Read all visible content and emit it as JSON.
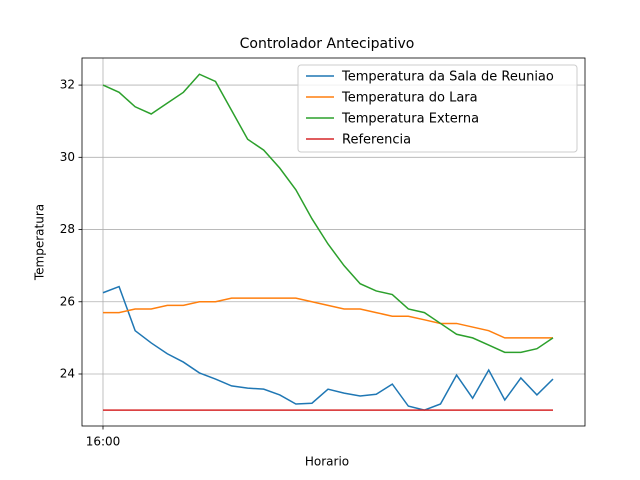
{
  "chart_data": {
    "type": "line",
    "title": "Controlador Antecipativo",
    "xlabel": "Horario",
    "ylabel": "Temperatura",
    "categories": [
      "16:00",
      null,
      null,
      null,
      null,
      null,
      null,
      null,
      null,
      null,
      null,
      null,
      null,
      null,
      null,
      null,
      null,
      null,
      null,
      null,
      null,
      null,
      null,
      null,
      null,
      null,
      null,
      null,
      null
    ],
    "series": [
      {
        "name": "Temperatura da Sala de Reuniao",
        "color": "#1f77b4",
        "values": [
          26.25,
          26.42,
          25.2,
          24.86,
          24.56,
          24.33,
          24.03,
          23.86,
          23.67,
          23.61,
          23.58,
          23.42,
          23.17,
          23.19,
          23.58,
          23.47,
          23.39,
          23.44,
          23.72,
          23.11,
          23.0,
          23.17,
          23.97,
          23.33,
          24.11,
          23.28,
          23.89,
          23.42,
          23.86
        ]
      },
      {
        "name": "Temperatura do Lara",
        "color": "#ff7f0e",
        "values": [
          25.7,
          25.7,
          25.8,
          25.8,
          25.9,
          25.9,
          26.0,
          26.0,
          26.1,
          26.1,
          26.1,
          26.1,
          26.1,
          26.0,
          25.9,
          25.8,
          25.8,
          25.7,
          25.6,
          25.6,
          25.5,
          25.4,
          25.4,
          25.3,
          25.2,
          25.0,
          25.0,
          25.0,
          25.0
        ]
      },
      {
        "name": "Temperatura Externa",
        "color": "#2ca02c",
        "values": [
          32.0,
          31.8,
          31.4,
          31.2,
          31.5,
          31.8,
          32.3,
          32.1,
          31.3,
          30.5,
          30.2,
          29.7,
          29.1,
          28.3,
          27.6,
          27.0,
          26.5,
          26.3,
          26.2,
          25.8,
          25.7,
          25.4,
          25.1,
          25.0,
          24.8,
          24.6,
          24.6,
          24.7,
          25.0
        ]
      },
      {
        "name": "Referencia",
        "color": "#d62728",
        "values": [
          23,
          23,
          23,
          23,
          23,
          23,
          23,
          23,
          23,
          23,
          23,
          23,
          23,
          23,
          23,
          23,
          23,
          23,
          23,
          23,
          23,
          23,
          23,
          23,
          23,
          23,
          23,
          23,
          23
        ]
      }
    ],
    "ylim": [
      22.56,
      32.75
    ],
    "yticks": [
      24,
      26,
      28,
      30,
      32
    ],
    "grid": true,
    "legend": "upper right"
  }
}
